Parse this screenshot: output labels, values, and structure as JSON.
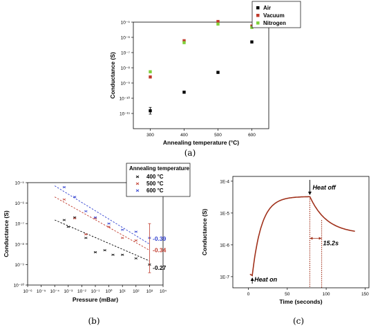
{
  "chart_data": [
    {
      "id": "a",
      "panel_label": "(a)",
      "type": "scatter",
      "xlabel": "Annealing temperature (°C)",
      "ylabel": "Conductance (S)",
      "xlim": [
        250,
        650
      ],
      "ylog": true,
      "ylim_exp": [
        -12,
        -5
      ],
      "x_ticks": [
        300,
        400,
        500,
        600
      ],
      "y_tick_labels": [
        "10⁻¹¹",
        "10⁻¹⁰",
        "10⁻⁹",
        "10⁻⁸",
        "10⁻⁷",
        "10⁻⁶",
        "10⁻⁵"
      ],
      "y_tick_exps": [
        -11,
        -10,
        -9,
        -8,
        -7,
        -6,
        -5
      ],
      "legend_position": "top-right",
      "series": [
        {
          "name": "Air",
          "color": "#000000",
          "x": [
            300,
            400,
            500,
            600
          ],
          "y": [
            1.5e-11,
            2.5e-10,
            5e-09,
            5e-07
          ],
          "err_low": [
            6e-12,
            0,
            0,
            0
          ],
          "err_high": [
            1e-11,
            0,
            0,
            0
          ]
        },
        {
          "name": "Vacuum",
          "color": "#c0392b",
          "x": [
            300,
            400,
            500,
            600
          ],
          "y": [
            2.5e-09,
            6e-07,
            1.1e-05,
            5.5e-06
          ]
        },
        {
          "name": "Nitrogen",
          "color": "#7fd03a",
          "x": [
            300,
            400,
            500,
            600
          ],
          "y": [
            5.5e-09,
            4.5e-07,
            7.5e-06,
            4.5e-06
          ]
        }
      ]
    },
    {
      "id": "b",
      "panel_label": "(b)",
      "type": "scatter",
      "xlabel": "Pressure (mBar)",
      "ylabel": "Conductance (S)",
      "xlog": true,
      "ylog": true,
      "xlim_exp": [
        -6,
        4
      ],
      "ylim_exp": [
        -10,
        -5
      ],
      "x_tick_exps": [
        -6,
        -5,
        -4,
        -3,
        -2,
        -1,
        0,
        1,
        2,
        3,
        4
      ],
      "x_tick_labels": [
        "10⁻⁶",
        "10⁻⁵",
        "10⁻⁴",
        "10⁻³",
        "10⁻²",
        "10⁻¹",
        "10⁰",
        "10¹",
        "10²",
        "10³",
        "10⁴"
      ],
      "y_tick_exps": [
        -10,
        -9,
        -8,
        -7,
        -6,
        -5
      ],
      "y_tick_labels": [
        "10⁻¹⁰",
        "10⁻⁹",
        "10⁻⁸",
        "10⁻⁷",
        "10⁻⁶",
        "10⁻⁵"
      ],
      "legend_title": "Annealing temperature",
      "legend_position": "top-right",
      "series": [
        {
          "name": "400 °C",
          "color": "#000000",
          "slope_label": "-0.27",
          "x": [
            0.0005,
            0.001,
            0.003,
            0.02,
            0.1,
            0.5,
            2,
            10,
            100,
            1000
          ],
          "y": [
            1.5e-07,
            7e-08,
            2e-07,
            2e-08,
            4e-09,
            5e-09,
            3e-09,
            3e-09,
            2e-09,
            1e-09
          ],
          "fit_x": [
            0.0001,
            1000
          ],
          "fit_y": [
            1.5e-07,
            1.5e-09
          ]
        },
        {
          "name": "500 °C",
          "color": "#c0392b",
          "slope_label": "-0.34",
          "x": [
            0.0005,
            0.003,
            0.02,
            0.1,
            1,
            10,
            100
          ],
          "y": [
            1.5e-06,
            1.8e-07,
            3e-08,
            1.8e-07,
            7e-08,
            2e-08,
            1.5e-08
          ],
          "fit_x": [
            0.0001,
            1000
          ],
          "fit_y": [
            2e-06,
            5e-09
          ]
        },
        {
          "name": "600 °C",
          "color": "#2f3fd0",
          "slope_label": "-0.39",
          "x": [
            0.0005,
            0.003,
            0.02,
            0.1,
            1,
            10,
            100,
            1000
          ],
          "y": [
            6e-06,
            2e-06,
            4e-07,
            2e-07,
            1e-07,
            5e-08,
            4e-08,
            2e-08
          ],
          "fit_x": [
            0.0001,
            1000
          ],
          "fit_y": [
            7e-06,
            1e-08
          ]
        }
      ]
    },
    {
      "id": "c",
      "panel_label": "(c)",
      "type": "line",
      "xlabel": "Time (seconds)",
      "ylabel": "Conductance (S)",
      "xlim": [
        -20,
        155
      ],
      "x_ticks": [
        0,
        50,
        100,
        150
      ],
      "ylog": true,
      "ylim_exp": [
        -7.35,
        -3.85
      ],
      "y_tick_exps": [
        -7,
        -6,
        -5,
        -4
      ],
      "y_tick_labels": [
        "1E-7",
        "1E-6",
        "1E-5",
        "1E-4"
      ],
      "color": "#a0301a",
      "heat_on_label": "Heat on",
      "heat_off_label": "Heat off",
      "time_constant_label": "15.2s",
      "heat_on_time": 5,
      "heat_off_time": 79,
      "tau_end_time": 94.2,
      "g_start": 1.1e-07,
      "g_max": 3.3e-05,
      "g_end": 2.2e-06,
      "t_end": 137
    }
  ]
}
